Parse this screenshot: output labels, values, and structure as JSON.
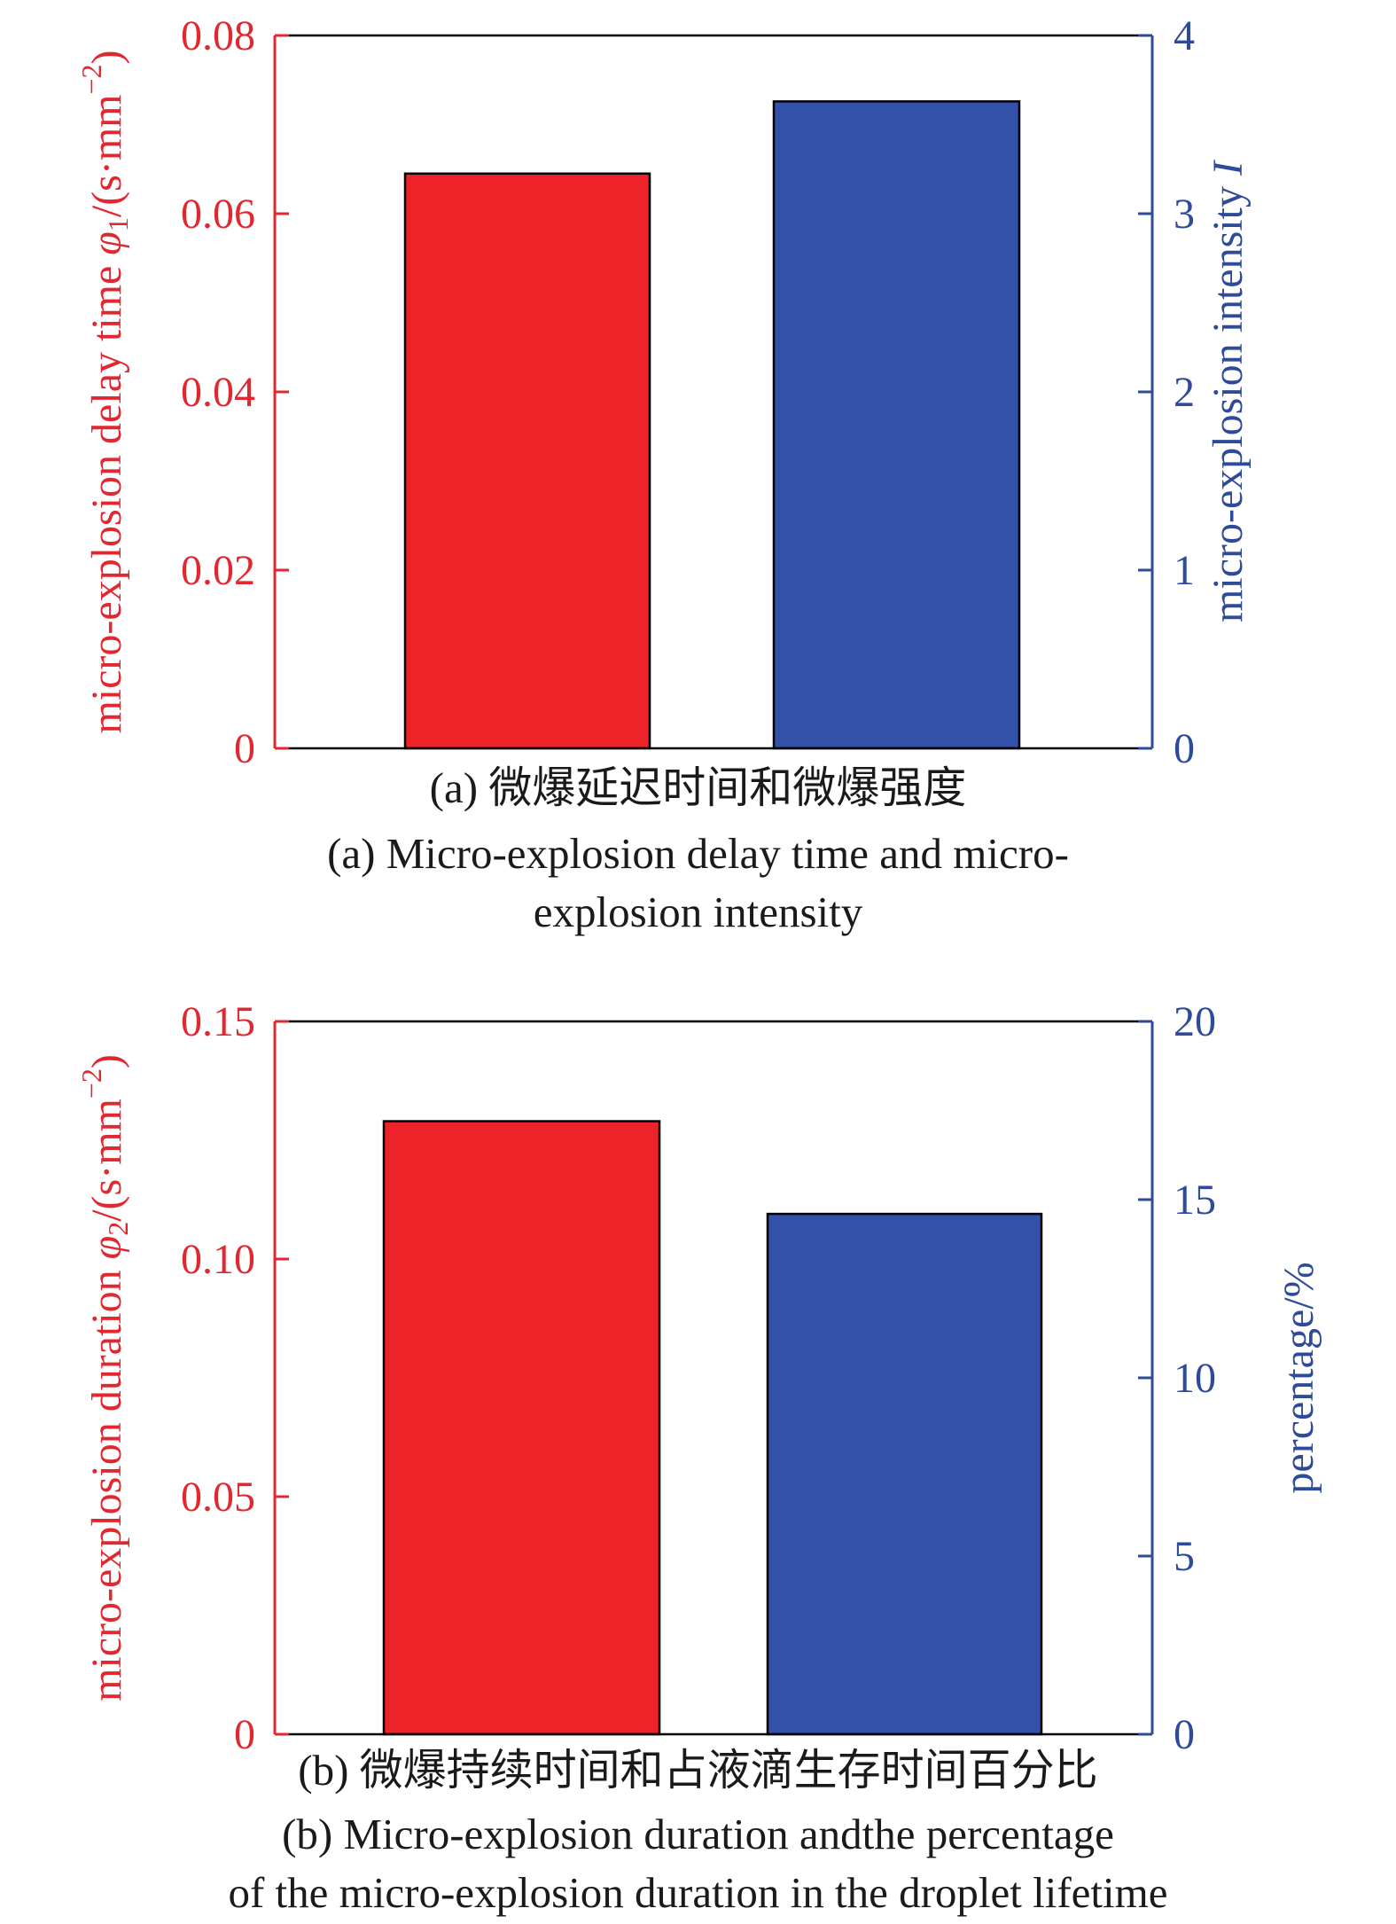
{
  "colors": {
    "left_axis": "#e02830",
    "right_axis": "#2e4a9a",
    "bar_left": "#ee2229",
    "bar_right": "#3351a9",
    "frame": "#000000"
  },
  "chart_data": [
    {
      "type": "bar",
      "panel": "a",
      "categories": [
        "",
        ""
      ],
      "series": [
        {
          "values": [
            0.0645,
            null
          ],
          "axis": "left"
        },
        {
          "values": [
            null,
            3.63
          ],
          "axis": "right"
        }
      ],
      "left_axis": {
        "label_parts": {
          "pre": "micro-explosion delay time ",
          "sym": "φ",
          "sub": "1",
          "post": "/(s·mm",
          "sup": "−2",
          "end": ")"
        },
        "ylim": [
          0,
          0.08
        ],
        "ticks": [
          0,
          0.02,
          0.04,
          0.06,
          0.08
        ],
        "tick_labels": [
          "0",
          "0.02",
          "0.04",
          "0.06",
          "0.08"
        ]
      },
      "right_axis": {
        "label_parts": {
          "pre": "micro-explosion intensity ",
          "sym": "I"
        },
        "ylim": [
          0,
          4
        ],
        "ticks": [
          0,
          1,
          2,
          3,
          4
        ],
        "tick_labels": [
          "0",
          "1",
          "2",
          "3",
          "4"
        ]
      },
      "caption_cn": "(a) 微爆延迟时间和微爆强度",
      "caption_en": "(a) Micro-explosion delay time and micro-\nexplosion intensity",
      "grid": false,
      "legend": "none"
    },
    {
      "type": "bar",
      "panel": "b",
      "categories": [
        "",
        ""
      ],
      "series": [
        {
          "values": [
            0.129,
            null
          ],
          "axis": "left"
        },
        {
          "values": [
            null,
            14.6
          ],
          "axis": "right"
        }
      ],
      "left_axis": {
        "label_parts": {
          "pre": "micro-explosion duration ",
          "sym": "φ",
          "sub": "2",
          "post": "/(s·mm",
          "sup": "−2",
          "end": ")"
        },
        "ylim": [
          0,
          0.15
        ],
        "ticks": [
          0,
          0.05,
          0.1,
          0.15
        ],
        "tick_labels": [
          "0",
          "0.05",
          "0.10",
          "0.15"
        ]
      },
      "right_axis": {
        "label_parts": {
          "pre": "percentage/%"
        },
        "ylim": [
          0,
          20
        ],
        "ticks": [
          0,
          5,
          10,
          15,
          20
        ],
        "tick_labels": [
          "0",
          "5",
          "10",
          "15",
          "20"
        ]
      },
      "caption_cn": "(b) 微爆持续时间和占液滴生存时间百分比",
      "caption_en": "(b) Micro-explosion duration andthe percentage\nof the micro-explosion duration in the droplet lifetime",
      "grid": false,
      "legend": "none"
    }
  ]
}
